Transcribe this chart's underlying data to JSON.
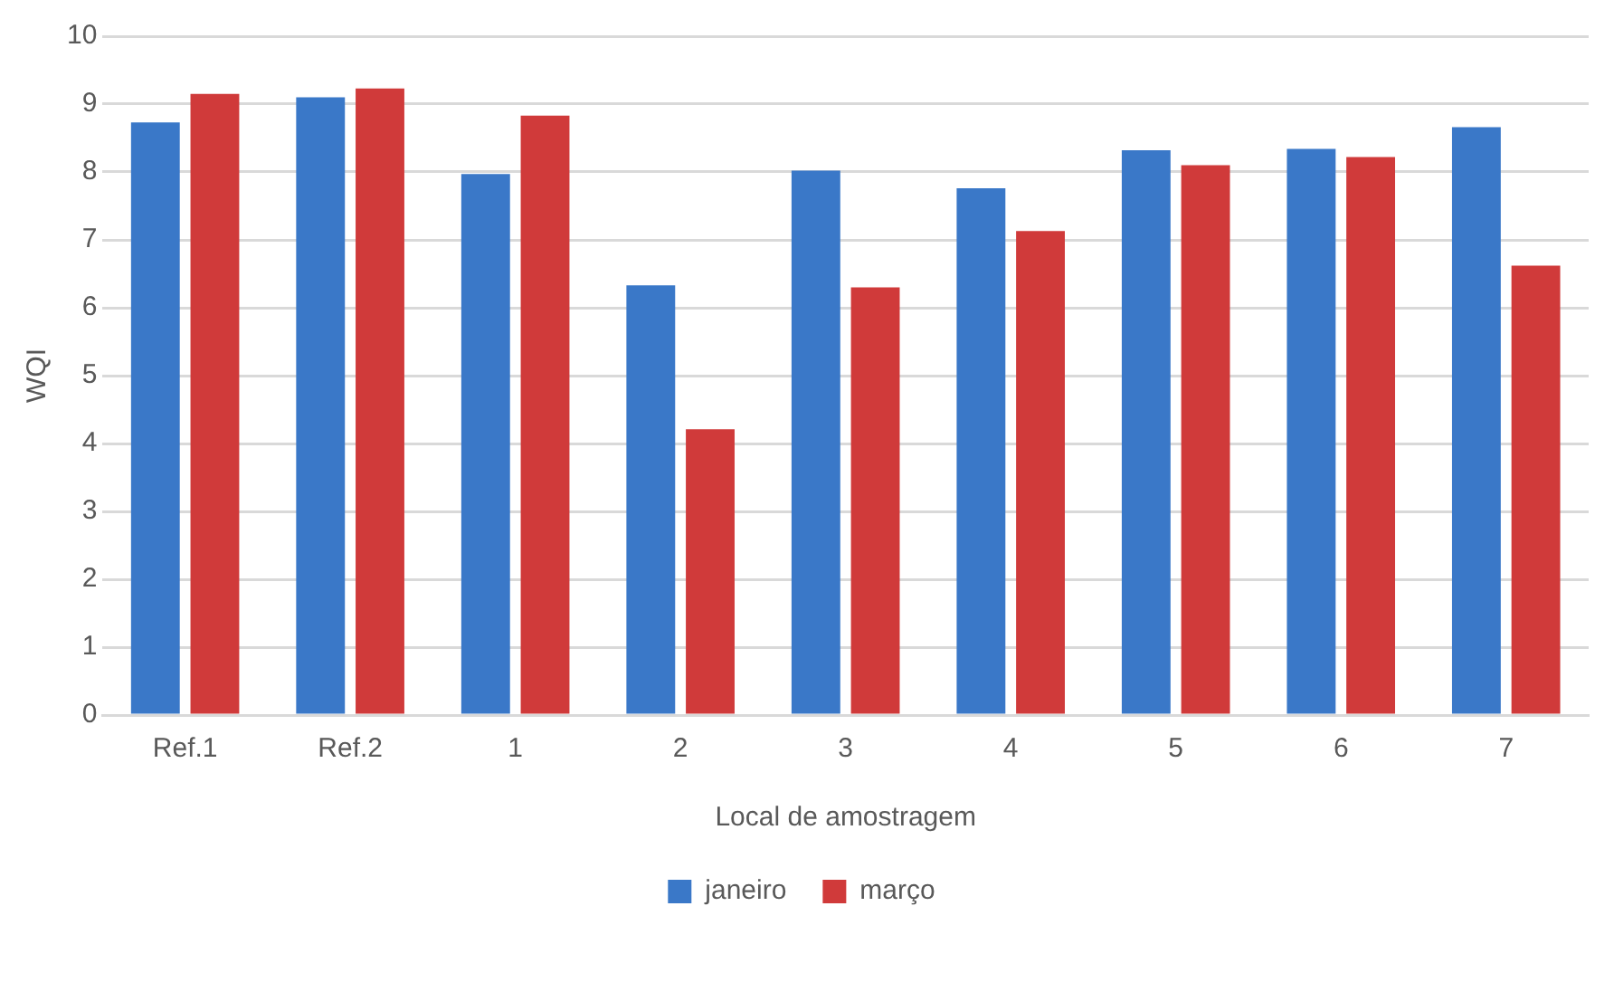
{
  "chart_data": {
    "type": "bar",
    "xlabel": "Local de amostragem",
    "ylabel": "WQI",
    "categories": [
      "Ref.1",
      "Ref.2",
      "1",
      "2",
      "3",
      "4",
      "5",
      "6",
      "7"
    ],
    "series": [
      {
        "name": "janeiro",
        "color": "#3a78c8",
        "values": [
          8.73,
          9.1,
          7.97,
          6.33,
          8.02,
          7.76,
          8.32,
          8.34,
          8.66
        ]
      },
      {
        "name": "março",
        "color": "#d03a3a",
        "values": [
          9.15,
          9.23,
          8.83,
          4.21,
          6.3,
          7.13,
          8.1,
          8.22,
          6.62
        ]
      }
    ],
    "ylim": [
      0,
      10
    ],
    "yticks": [
      0,
      1,
      2,
      3,
      4,
      5,
      6,
      7,
      8,
      9,
      10
    ],
    "grid": "y",
    "legend": "bottom"
  }
}
